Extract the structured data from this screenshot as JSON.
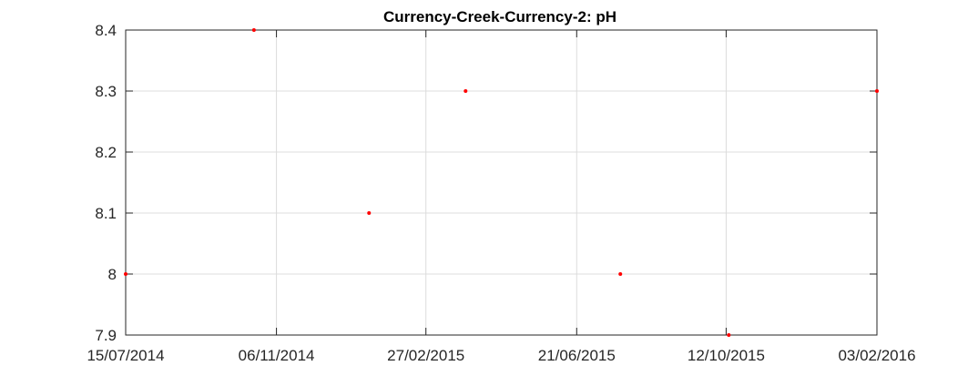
{
  "chart_data": {
    "type": "scatter",
    "title": "Currency-Creek-Currency-2: pH",
    "xlabel": "",
    "ylabel": "",
    "x_ticks": [
      "15/07/2014",
      "06/11/2014",
      "27/02/2015",
      "21/06/2015",
      "12/10/2015",
      "03/02/2016"
    ],
    "y_ticks": [
      "7.9",
      "8",
      "8.1",
      "8.2",
      "8.3",
      "8.4"
    ],
    "xlim": [
      "15/07/2014",
      "03/02/2016"
    ],
    "ylim": [
      7.9,
      8.4
    ],
    "grid": true,
    "marker_color": "#ff0000",
    "points": [
      {
        "x": "15/07/2014",
        "y": 8.0
      },
      {
        "x": "20/10/2014",
        "y": 8.4
      },
      {
        "x": "15/01/2015",
        "y": 8.1
      },
      {
        "x": "29/03/2015",
        "y": 8.3
      },
      {
        "x": "24/07/2015",
        "y": 8.0
      },
      {
        "x": "14/10/2015",
        "y": 7.9
      },
      {
        "x": "03/02/2016",
        "y": 8.3
      }
    ]
  }
}
